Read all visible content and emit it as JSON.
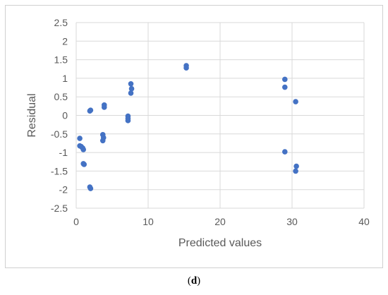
{
  "chart_data": {
    "type": "scatter",
    "title": "",
    "xlabel": "Predicted values",
    "ylabel": "Residual",
    "xlim": [
      0,
      40
    ],
    "ylim": [
      -2.5,
      2.5
    ],
    "x_ticks": [
      0,
      10,
      20,
      30,
      40
    ],
    "y_ticks": [
      2.5,
      2,
      1.5,
      1,
      0.5,
      0,
      -0.5,
      -1,
      -1.5,
      -2,
      -2.5
    ],
    "x_tick_labels": [
      "0",
      "10",
      "20",
      "30",
      "40"
    ],
    "y_tick_labels": [
      "2.5",
      "2",
      "1.5",
      "1",
      "0.5",
      "0",
      "-0.5",
      "-1",
      "-1.5",
      "-2",
      "-2.5"
    ],
    "grid": true,
    "legend": "none",
    "marker_color": "#4472C4",
    "series": [
      {
        "x": [
          0.5,
          0.5,
          0.7,
          0.9,
          1.0,
          1.0,
          1.1,
          1.9,
          2.0,
          1.9,
          2.0,
          3.7,
          3.8,
          3.7,
          3.9,
          3.9,
          7.2,
          7.2,
          7.2,
          7.6,
          7.7,
          7.6,
          15.3,
          15.3,
          29.0,
          29.0,
          29.0,
          30.5,
          30.6,
          30.5
        ],
        "y": [
          -0.62,
          -0.82,
          -0.84,
          -0.88,
          -0.92,
          -1.3,
          -1.32,
          0.12,
          0.14,
          -1.93,
          -1.97,
          -0.52,
          -0.6,
          -0.68,
          0.28,
          0.22,
          -0.02,
          -0.08,
          -0.14,
          0.85,
          0.72,
          0.6,
          1.34,
          1.28,
          0.97,
          0.76,
          -0.98,
          0.37,
          -1.37,
          -1.5
        ]
      }
    ]
  },
  "caption": {
    "open": "(",
    "letter": "d",
    "close": ")"
  }
}
